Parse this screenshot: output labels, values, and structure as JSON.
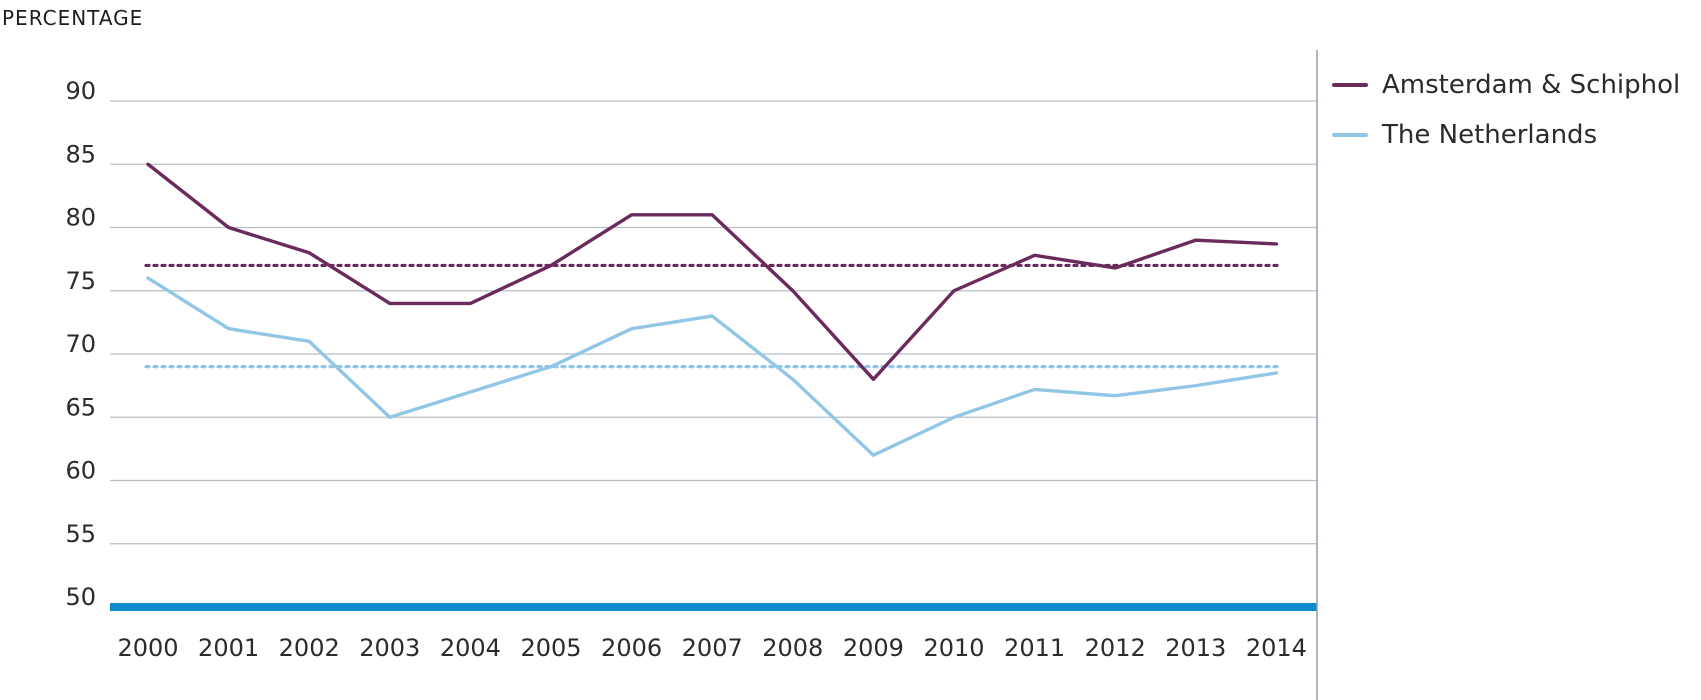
{
  "chart_data": {
    "type": "line",
    "ylabel": "PERCENTAGE",
    "xlabel": "",
    "ylim": [
      50,
      90
    ],
    "yticks": [
      50,
      55,
      60,
      65,
      70,
      75,
      80,
      85,
      90
    ],
    "categories": [
      "2000",
      "2001",
      "2002",
      "2003",
      "2004",
      "2005",
      "2006",
      "2007",
      "2008",
      "2009",
      "2010",
      "2011",
      "2012",
      "2013",
      "2014"
    ],
    "grid": true,
    "legend_position": "right",
    "series": [
      {
        "name": "Amsterdam & Schiphol",
        "color": "#6b2a5c",
        "values": [
          85,
          80,
          78,
          74,
          74,
          77,
          81,
          81,
          75,
          68,
          75,
          77.8,
          76.8,
          79,
          78.7
        ],
        "average": 77
      },
      {
        "name": "The Netherlands",
        "color": "#92c6e6",
        "values": [
          76,
          72,
          71,
          65,
          67,
          69,
          72,
          73,
          68,
          62,
          65,
          67.2,
          66.7,
          67.5,
          68.5
        ],
        "average": 69
      }
    ],
    "baseline_color": "#0a8ccc",
    "grid_color": "#b8bfc6"
  }
}
